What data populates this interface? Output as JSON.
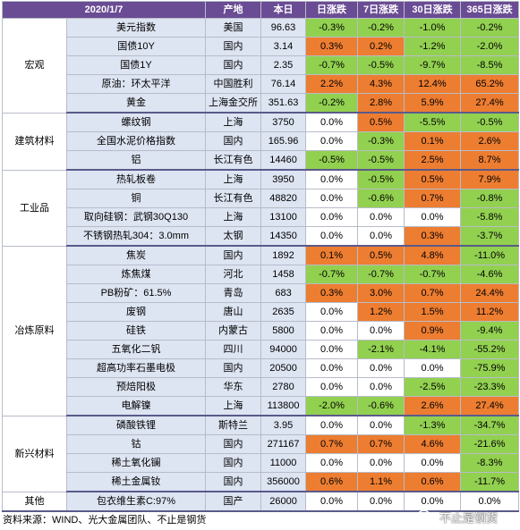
{
  "header": {
    "date": "2020/1/7",
    "location": "产地",
    "price": "本日",
    "d1": "日涨跌",
    "d7": "7日涨跌",
    "d30": "30日涨跌",
    "d365": "365日涨跌"
  },
  "groups": [
    {
      "category": "宏观",
      "rows": [
        {
          "name": "美元指数",
          "location": "美国",
          "price": "96.63",
          "d1": "-0.3%",
          "d7": "-0.2%",
          "d30": "-1.0%",
          "d365": "-0.2%"
        },
        {
          "name": "国债10Y",
          "location": "国内",
          "price": "3.14",
          "d1": "0.3%",
          "d7": "0.2%",
          "d30": "-1.2%",
          "d365": "-2.0%"
        },
        {
          "name": "国债1Y",
          "location": "国内",
          "price": "2.35",
          "d1": "-0.7%",
          "d7": "-0.5%",
          "d30": "-9.7%",
          "d365": "-8.5%"
        },
        {
          "name": "原油：环太平洋",
          "location": "中国胜利",
          "price": "76.14",
          "d1": "2.2%",
          "d7": "4.3%",
          "d30": "12.4%",
          "d365": "65.2%"
        },
        {
          "name": "黄金",
          "location": "上海金交所",
          "price": "351.63",
          "d1": "-0.2%",
          "d7": "2.8%",
          "d30": "5.9%",
          "d365": "27.4%"
        }
      ]
    },
    {
      "category": "建筑材料",
      "rows": [
        {
          "name": "螺纹钢",
          "location": "上海",
          "price": "3750",
          "d1": "0.0%",
          "d7": "0.5%",
          "d30": "-5.5%",
          "d365": "-0.5%"
        },
        {
          "name": "全国水泥价格指数",
          "location": "国内",
          "price": "165.96",
          "d1": "0.0%",
          "d7": "-0.3%",
          "d30": "0.1%",
          "d365": "2.6%"
        },
        {
          "name": "铝",
          "location": "长江有色",
          "price": "14460",
          "d1": "-0.5%",
          "d7": "-0.5%",
          "d30": "2.5%",
          "d365": "8.7%"
        }
      ]
    },
    {
      "category": "工业品",
      "rows": [
        {
          "name": "热轧板卷",
          "location": "上海",
          "price": "3950",
          "d1": "0.0%",
          "d7": "-0.5%",
          "d30": "0.5%",
          "d365": "7.9%"
        },
        {
          "name": "铜",
          "location": "长江有色",
          "price": "48820",
          "d1": "0.0%",
          "d7": "-0.6%",
          "d30": "0.7%",
          "d365": "-0.8%"
        },
        {
          "name": "取向硅钢：武钢30Q130",
          "location": "上海",
          "price": "13100",
          "d1": "0.0%",
          "d7": "0.0%",
          "d30": "0.0%",
          "d365": "-5.8%"
        },
        {
          "name": "不锈钢热轧304：3.0mm",
          "location": "太钢",
          "price": "14350",
          "d1": "0.0%",
          "d7": "0.0%",
          "d30": "0.3%",
          "d365": "-3.7%"
        }
      ]
    },
    {
      "category": "冶炼原料",
      "rows": [
        {
          "name": "焦炭",
          "location": "国内",
          "price": "1892",
          "d1": "0.1%",
          "d7": "0.5%",
          "d30": "4.8%",
          "d365": "-11.0%"
        },
        {
          "name": "炼焦煤",
          "location": "河北",
          "price": "1458",
          "d1": "-0.7%",
          "d7": "-0.7%",
          "d30": "-0.7%",
          "d365": "-4.6%"
        },
        {
          "name": "PB粉矿：61.5%",
          "location": "青岛",
          "price": "683",
          "d1": "0.3%",
          "d7": "3.0%",
          "d30": "0.7%",
          "d365": "24.4%"
        },
        {
          "name": "废钢",
          "location": "唐山",
          "price": "2635",
          "d1": "0.0%",
          "d7": "1.2%",
          "d30": "1.5%",
          "d365": "11.2%"
        },
        {
          "name": "硅铁",
          "location": "内蒙古",
          "price": "5800",
          "d1": "0.0%",
          "d7": "0.0%",
          "d30": "0.9%",
          "d365": "-9.4%"
        },
        {
          "name": "五氧化二钒",
          "location": "四川",
          "price": "94000",
          "d1": "0.0%",
          "d7": "-2.1%",
          "d30": "-4.1%",
          "d365": "-55.2%"
        },
        {
          "name": "超高功率石墨电极",
          "location": "国内",
          "price": "20500",
          "d1": "0.0%",
          "d7": "0.0%",
          "d30": "0.0%",
          "d365": "-75.9%"
        },
        {
          "name": "预焙阳极",
          "location": "华东",
          "price": "2780",
          "d1": "0.0%",
          "d7": "0.0%",
          "d30": "-2.5%",
          "d365": "-23.3%"
        },
        {
          "name": "电解镍",
          "location": "上海",
          "price": "113800",
          "d1": "-2.0%",
          "d7": "-0.6%",
          "d30": "2.6%",
          "d365": "27.4%"
        }
      ]
    },
    {
      "category": "新兴材料",
      "rows": [
        {
          "name": "磷酸铁锂",
          "location": "斯特兰",
          "price": "3.95",
          "d1": "0.0%",
          "d7": "0.0%",
          "d30": "-1.3%",
          "d365": "-34.7%"
        },
        {
          "name": "钴",
          "location": "国内",
          "price": "271167",
          "d1": "0.7%",
          "d7": "0.7%",
          "d30": "4.6%",
          "d365": "-21.6%"
        },
        {
          "name": "稀土氧化镧",
          "location": "国内",
          "price": "11000",
          "d1": "0.0%",
          "d7": "0.0%",
          "d30": "0.0%",
          "d365": "-8.3%"
        },
        {
          "name": "稀土金属钕",
          "location": "国内",
          "price": "356000",
          "d1": "0.6%",
          "d7": "1.1%",
          "d30": "0.6%",
          "d365": "-11.7%"
        }
      ]
    },
    {
      "category": "其他",
      "rows": [
        {
          "name": "包衣维生素C:97%",
          "location": "国产",
          "price": "26000",
          "d1": "0.0%",
          "d7": "0.0%",
          "d30": "0.0%",
          "d365": "0.0%"
        }
      ]
    }
  ],
  "footer": {
    "source": "资料来源：WIND、光大金属团队、不止是钢货"
  },
  "watermark": {
    "text": "不止是钢货",
    "icon": "wechat-icon"
  },
  "colors": {
    "header_bg": "#6a4c94",
    "cell_bg": "#dde4f2",
    "up": "#ed7d31",
    "down": "#92d050",
    "neutral": "#ffffff"
  }
}
